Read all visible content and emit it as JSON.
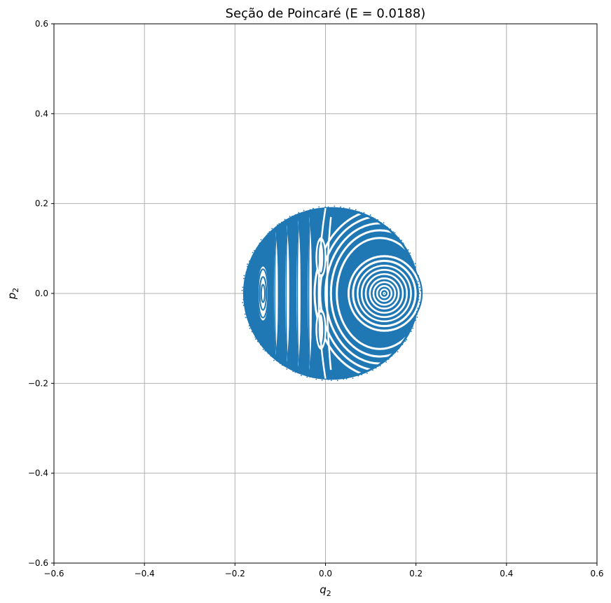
{
  "chart_data": {
    "type": "scatter",
    "title": "Seção de Poincaré (E = 0.0188)",
    "xlabel": "q",
    "xlabel_sub": "2",
    "ylabel": "p",
    "ylabel_sub": "2",
    "xlim": [
      -0.6,
      0.6
    ],
    "ylim": [
      -0.6,
      0.6
    ],
    "xticks": [
      -0.6,
      -0.4,
      -0.2,
      0.0,
      0.2,
      0.4,
      0.6
    ],
    "yticks": [
      -0.6,
      -0.4,
      -0.2,
      0.0,
      0.2,
      0.4,
      0.6
    ],
    "xtick_labels": [
      "−0.6",
      "−0.4",
      "−0.2",
      "0.0",
      "0.2",
      "0.4",
      "0.6"
    ],
    "ytick_labels": [
      "−0.6",
      "−0.4",
      "−0.2",
      "0.0",
      "0.2",
      "0.4",
      "0.6"
    ],
    "grid": true,
    "series_color": "#1f77b4",
    "region": {
      "shape": "ellipse",
      "center": [
        0.013,
        0.0
      ],
      "q_range": [
        -0.182,
        0.208
      ],
      "p_range": [
        -0.192,
        0.192
      ]
    },
    "islands": [
      {
        "center": [
          0.13,
          0.0
        ],
        "radii_q": [
          0.005,
          0.012,
          0.02,
          0.028,
          0.036,
          0.045,
          0.055,
          0.065,
          0.075,
          0.083
        ],
        "aspect": 1.0
      },
      {
        "center": [
          -0.138,
          0.0
        ],
        "radii_q": [
          0.008,
          0.015,
          0.022
        ],
        "aspect": 3.5
      }
    ],
    "small_islands": [
      {
        "center": [
          -0.01,
          0.08
        ],
        "rq": 0.012,
        "rp": 0.045
      },
      {
        "center": [
          -0.01,
          -0.08
        ],
        "rq": 0.012,
        "rp": 0.045
      }
    ]
  },
  "colors": {
    "grid": "#b0b0b0",
    "axis": "#000000",
    "points": "#1f77b4"
  }
}
